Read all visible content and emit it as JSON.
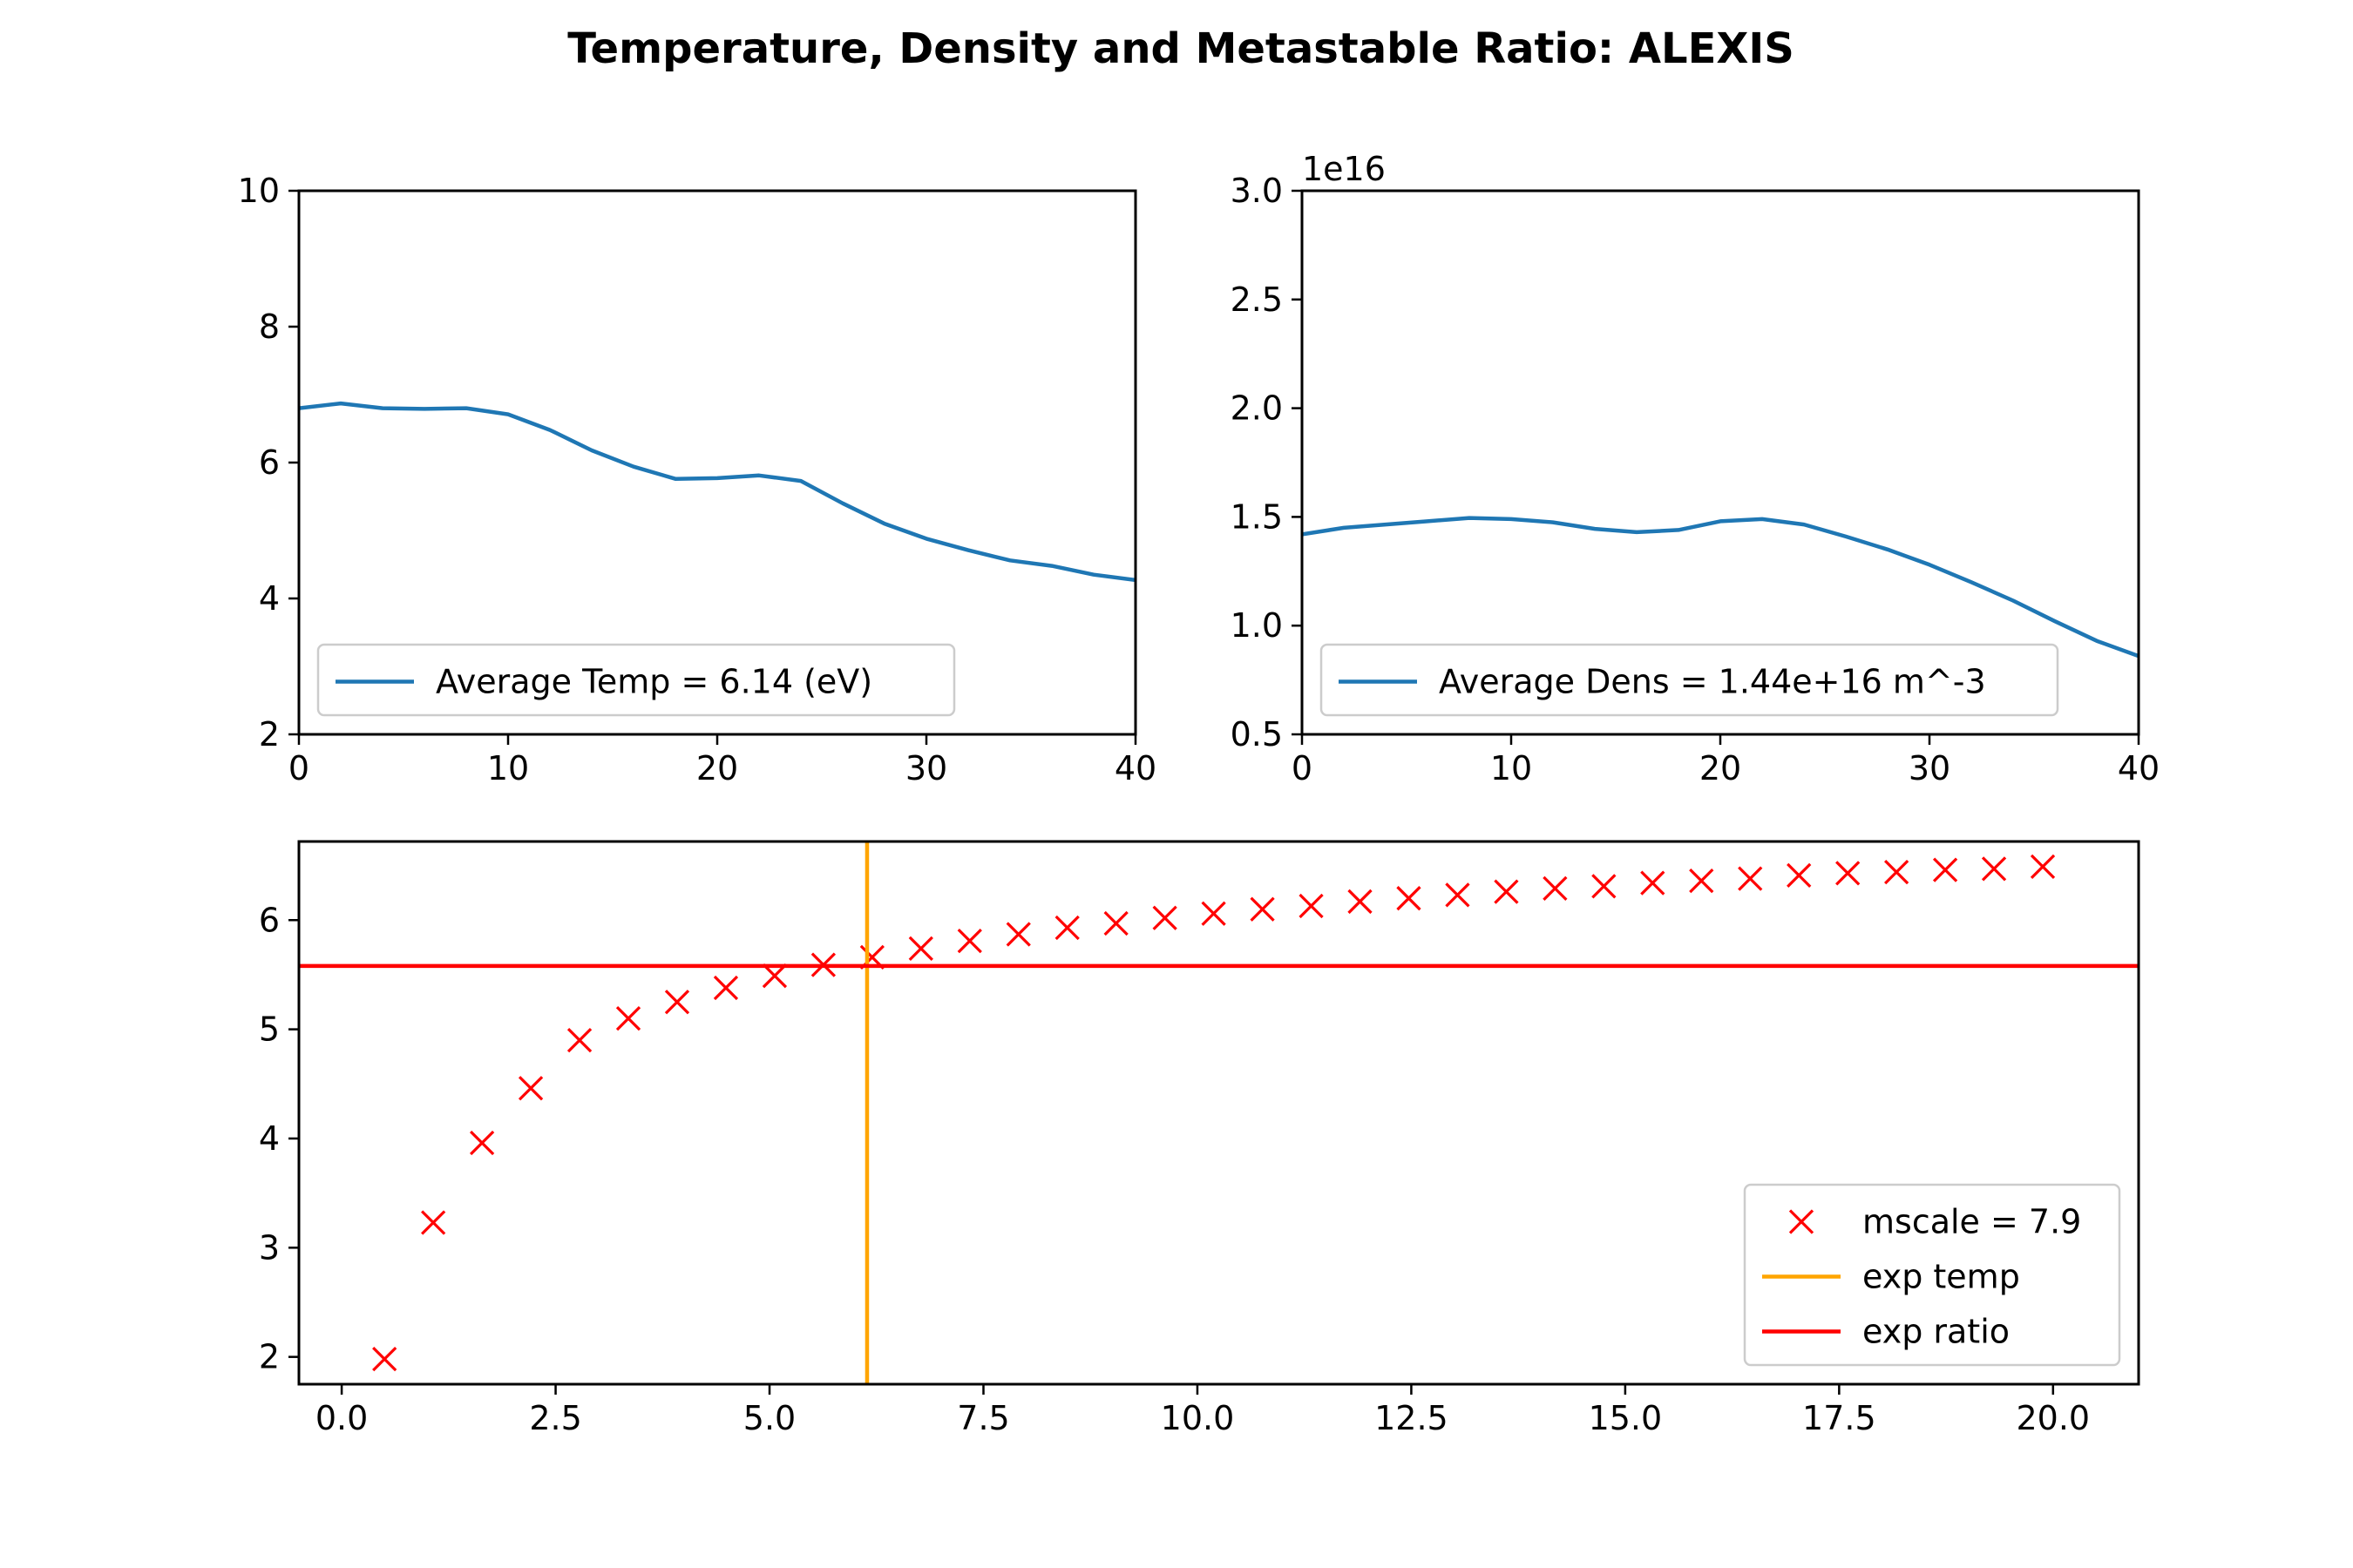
{
  "figure": {
    "suptitle": "Temperature, Density and Metastable Ratio: ALEXIS"
  },
  "chart_data": [
    {
      "id": "temp",
      "type": "line",
      "title": "",
      "xlabel": "",
      "ylabel": "",
      "xlim": [
        0,
        40
      ],
      "ylim": [
        2,
        10
      ],
      "xticks": [
        0,
        10,
        20,
        30,
        40
      ],
      "xtick_labels": [
        "0",
        "10",
        "20",
        "30",
        "40"
      ],
      "yticks": [
        2,
        4,
        6,
        8,
        10
      ],
      "ytick_labels": [
        "2",
        "4",
        "6",
        "8",
        "10"
      ],
      "offset_text": "",
      "grid": false,
      "legend": "lower-left",
      "series": [
        {
          "name": "Average Temp =  6.14 (eV)",
          "color": "#1f77b4",
          "style": "line",
          "x": [
            0,
            2,
            4,
            6,
            8,
            10,
            12,
            14,
            16,
            18,
            20,
            22,
            24,
            26,
            28,
            30,
            32,
            34,
            36,
            38,
            40
          ],
          "y": [
            6.8,
            6.87,
            6.8,
            6.79,
            6.8,
            6.71,
            6.48,
            6.18,
            5.94,
            5.76,
            5.77,
            5.81,
            5.73,
            5.4,
            5.1,
            4.88,
            4.71,
            4.56,
            4.48,
            4.35,
            4.27
          ]
        }
      ]
    },
    {
      "id": "dens",
      "type": "line",
      "title": "",
      "xlabel": "",
      "ylabel": "",
      "xlim": [
        0,
        40
      ],
      "ylim": [
        0.5,
        3.0
      ],
      "xticks": [
        0,
        10,
        20,
        30,
        40
      ],
      "xtick_labels": [
        "0",
        "10",
        "20",
        "30",
        "40"
      ],
      "yticks": [
        0.5,
        1.0,
        1.5,
        2.0,
        2.5,
        3.0
      ],
      "ytick_labels": [
        "0.5",
        "1.0",
        "1.5",
        "2.0",
        "2.5",
        "3.0"
      ],
      "offset_text": "1e16",
      "grid": false,
      "legend": "lower-left",
      "series": [
        {
          "name": "Average Dens = 1.44e+16 m^-3",
          "color": "#1f77b4",
          "style": "line",
          "x": [
            0,
            2,
            4,
            6,
            8,
            10,
            12,
            14,
            16,
            18,
            20,
            22,
            24,
            26,
            28,
            30,
            32,
            34,
            36,
            38,
            40
          ],
          "y": [
            1.42,
            1.45,
            1.465,
            1.48,
            1.495,
            1.49,
            1.475,
            1.445,
            1.43,
            1.44,
            1.48,
            1.49,
            1.465,
            1.41,
            1.35,
            1.28,
            1.2,
            1.115,
            1.02,
            0.93,
            0.86
          ]
        }
      ]
    },
    {
      "id": "ratio",
      "type": "scatter",
      "title": "",
      "xlabel": "",
      "ylabel": "",
      "xlim": [
        -0.5,
        21.0
      ],
      "ylim": [
        1.75,
        6.72
      ],
      "xticks": [
        0,
        2.5,
        5,
        7.5,
        10,
        12.5,
        15,
        17.5,
        20
      ],
      "xtick_labels": [
        "0.0",
        "2.5",
        "5.0",
        "7.5",
        "10.0",
        "12.5",
        "15.0",
        "17.5",
        "20.0"
      ],
      "yticks": [
        2,
        3,
        4,
        5,
        6
      ],
      "ytick_labels": [
        "2",
        "3",
        "4",
        "5",
        "6"
      ],
      "offset_text": "",
      "grid": false,
      "legend": "lower-right",
      "series": [
        {
          "name": "mscale = 7.9",
          "color": "#ff0000",
          "style": "marker-x",
          "x": [
            0.5,
            1.07,
            1.64,
            2.21,
            2.78,
            3.35,
            3.92,
            4.49,
            5.06,
            5.63,
            6.2,
            6.77,
            7.34,
            7.91,
            8.48,
            9.05,
            9.62,
            10.19,
            10.76,
            11.33,
            11.9,
            12.47,
            13.04,
            13.61,
            14.18,
            14.75,
            15.32,
            15.89,
            16.46,
            17.03,
            17.6,
            18.17,
            18.74,
            19.31,
            19.88
          ],
          "y": [
            1.98,
            3.23,
            3.96,
            4.46,
            4.9,
            5.1,
            5.25,
            5.38,
            5.49,
            5.59,
            5.66,
            5.74,
            5.81,
            5.87,
            5.93,
            5.97,
            6.02,
            6.06,
            6.1,
            6.13,
            6.17,
            6.2,
            6.23,
            6.26,
            6.29,
            6.31,
            6.34,
            6.36,
            6.38,
            6.41,
            6.43,
            6.44,
            6.46,
            6.47,
            6.49
          ]
        },
        {
          "name": "exp temp",
          "color": "#ffa500",
          "style": "vline",
          "x": 6.14
        },
        {
          "name": "exp ratio",
          "color": "#ff0000",
          "style": "hline",
          "y": 5.58
        }
      ]
    }
  ]
}
